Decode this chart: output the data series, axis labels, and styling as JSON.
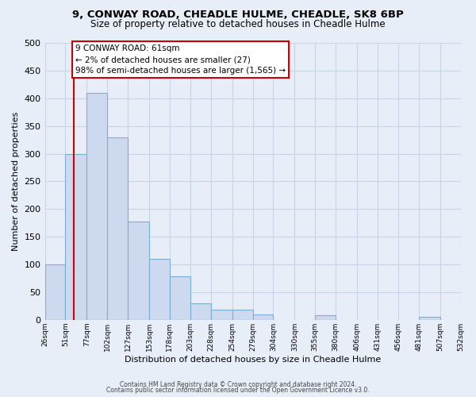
{
  "title_line1": "9, CONWAY ROAD, CHEADLE HULME, CHEADLE, SK8 6BP",
  "title_line2": "Size of property relative to detached houses in Cheadle Hulme",
  "xlabel": "Distribution of detached houses by size in Cheadle Hulme",
  "ylabel": "Number of detached properties",
  "bar_edges": [
    26,
    51,
    77,
    102,
    127,
    153,
    178,
    203,
    228,
    254,
    279,
    304,
    330,
    355,
    380,
    406,
    431,
    456,
    481,
    507,
    532
  ],
  "bar_heights": [
    100,
    300,
    410,
    330,
    178,
    110,
    78,
    30,
    18,
    18,
    10,
    0,
    0,
    8,
    0,
    0,
    0,
    0,
    5,
    0,
    0
  ],
  "bar_color": "#ccd9ee",
  "bar_edge_color": "#7bafd4",
  "vline_x": 61,
  "vline_color": "#cc0000",
  "annotation_text": "9 CONWAY ROAD: 61sqm\n← 2% of detached houses are smaller (27)\n98% of semi-detached houses are larger (1,565) →",
  "annotation_box_facecolor": "#ffffff",
  "annotation_box_edgecolor": "#cc0000",
  "ylim": [
    0,
    500
  ],
  "yticks": [
    0,
    50,
    100,
    150,
    200,
    250,
    300,
    350,
    400,
    450,
    500
  ],
  "tick_labels": [
    "26sqm",
    "51sqm",
    "77sqm",
    "102sqm",
    "127sqm",
    "153sqm",
    "178sqm",
    "203sqm",
    "228sqm",
    "254sqm",
    "279sqm",
    "304sqm",
    "330sqm",
    "355sqm",
    "380sqm",
    "406sqm",
    "431sqm",
    "456sqm",
    "481sqm",
    "507sqm",
    "532sqm"
  ],
  "footer_line1": "Contains HM Land Registry data © Crown copyright and database right 2024.",
  "footer_line2": "Contains public sector information licensed under the Open Government Licence v3.0.",
  "background_color": "#e8eef8",
  "grid_color": "#c8d4e8",
  "title_fontsize": 9.5,
  "subtitle_fontsize": 8.5,
  "ylabel_fontsize": 8,
  "xlabel_fontsize": 8,
  "tick_fontsize": 6.5,
  "footer_fontsize": 5.5
}
